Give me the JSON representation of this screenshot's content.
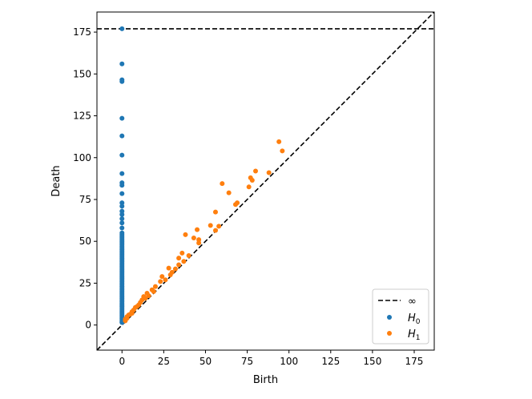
{
  "chart_data": {
    "type": "scatter",
    "xlabel": "Birth",
    "ylabel": "Death",
    "xlim": [
      -15,
      187
    ],
    "ylim": [
      -15,
      187
    ],
    "xticks": [
      0,
      25,
      50,
      75,
      100,
      125,
      150,
      175
    ],
    "yticks": [
      0,
      25,
      50,
      75,
      100,
      125,
      150,
      175
    ],
    "infinity_level": 177,
    "legend": {
      "position": "lower-right",
      "entries": [
        {
          "label": "∞",
          "kind": "dashed-line"
        },
        {
          "label": "H0",
          "base": "H",
          "sub": "0",
          "kind": "marker",
          "color": "#1f77b4"
        },
        {
          "label": "H1",
          "base": "H",
          "sub": "1",
          "kind": "marker",
          "color": "#ff7f0e"
        }
      ]
    },
    "series": [
      {
        "name": "H0",
        "color": "#1f77b4",
        "points": [
          [
            0,
            177
          ],
          [
            0,
            156
          ],
          [
            0,
            146.5
          ],
          [
            0,
            145.5
          ],
          [
            0,
            123.5
          ],
          [
            0,
            113
          ],
          [
            0,
            101.5
          ],
          [
            0,
            90.5
          ],
          [
            0,
            85
          ],
          [
            0,
            83.5
          ],
          [
            0,
            78.5
          ],
          [
            0,
            73
          ],
          [
            0,
            71
          ],
          [
            0,
            68
          ],
          [
            0,
            66
          ],
          [
            0,
            63.5
          ],
          [
            0,
            61
          ],
          [
            0,
            58
          ],
          [
            0,
            55
          ],
          [
            0,
            54
          ],
          [
            0,
            53
          ],
          [
            0,
            52
          ],
          [
            0,
            51
          ],
          [
            0,
            50
          ],
          [
            0,
            49
          ],
          [
            0,
            48
          ],
          [
            0,
            47
          ],
          [
            0,
            46
          ],
          [
            0,
            45
          ],
          [
            0,
            44
          ],
          [
            0,
            43
          ],
          [
            0,
            42
          ],
          [
            0,
            41
          ],
          [
            0,
            40
          ],
          [
            0,
            39
          ],
          [
            0,
            38
          ],
          [
            0,
            37
          ],
          [
            0,
            36
          ],
          [
            0,
            35
          ],
          [
            0,
            34
          ],
          [
            0,
            33
          ],
          [
            0,
            32
          ],
          [
            0,
            31
          ],
          [
            0,
            30
          ],
          [
            0,
            29
          ],
          [
            0,
            28
          ],
          [
            0,
            27
          ],
          [
            0,
            26
          ],
          [
            0,
            25
          ],
          [
            0,
            24
          ],
          [
            0,
            23
          ],
          [
            0,
            22
          ],
          [
            0,
            21
          ],
          [
            0,
            20
          ],
          [
            0,
            19
          ],
          [
            0,
            18
          ],
          [
            0,
            17
          ],
          [
            0,
            16
          ],
          [
            0,
            15
          ],
          [
            0,
            14
          ],
          [
            0,
            13
          ],
          [
            0,
            12
          ],
          [
            0,
            11
          ],
          [
            0,
            10
          ],
          [
            0,
            9
          ],
          [
            0,
            8
          ],
          [
            0,
            7
          ],
          [
            0,
            6
          ],
          [
            0,
            5
          ],
          [
            0,
            4
          ],
          [
            0,
            3
          ],
          [
            0,
            2
          ],
          [
            0,
            1.5
          ]
        ]
      },
      {
        "name": "H1",
        "color": "#ff7f0e",
        "points": [
          [
            94,
            109.5
          ],
          [
            96,
            104
          ],
          [
            80,
            92
          ],
          [
            88,
            91
          ],
          [
            77,
            88
          ],
          [
            78,
            86.5
          ],
          [
            60,
            84.5
          ],
          [
            76,
            82.5
          ],
          [
            64,
            79
          ],
          [
            68,
            72
          ],
          [
            69,
            73
          ],
          [
            56,
            67.5
          ],
          [
            53,
            59.5
          ],
          [
            58,
            59
          ],
          [
            45,
            57
          ],
          [
            38,
            54
          ],
          [
            43,
            52
          ],
          [
            46,
            51
          ],
          [
            46,
            49
          ],
          [
            56,
            56.5
          ],
          [
            40,
            41.5
          ],
          [
            36,
            43
          ],
          [
            34,
            40
          ],
          [
            37,
            38
          ],
          [
            34,
            36
          ],
          [
            28,
            34
          ],
          [
            32,
            33.5
          ],
          [
            30,
            31.5
          ],
          [
            29,
            30
          ],
          [
            24,
            29
          ],
          [
            26,
            27
          ],
          [
            23,
            26
          ],
          [
            20,
            23
          ],
          [
            18,
            21
          ],
          [
            19,
            20
          ],
          [
            15,
            19
          ],
          [
            16,
            17.5
          ],
          [
            13,
            17
          ],
          [
            14,
            16
          ],
          [
            12,
            15
          ],
          [
            11,
            13.5
          ],
          [
            10,
            12
          ],
          [
            9,
            11
          ],
          [
            8,
            10.5
          ],
          [
            7,
            9
          ],
          [
            6,
            8
          ],
          [
            6,
            7
          ],
          [
            5,
            6.5
          ],
          [
            4,
            6
          ],
          [
            3,
            5
          ],
          [
            3,
            4
          ],
          [
            2,
            3.5
          ],
          [
            2,
            2.5
          ]
        ]
      }
    ]
  }
}
